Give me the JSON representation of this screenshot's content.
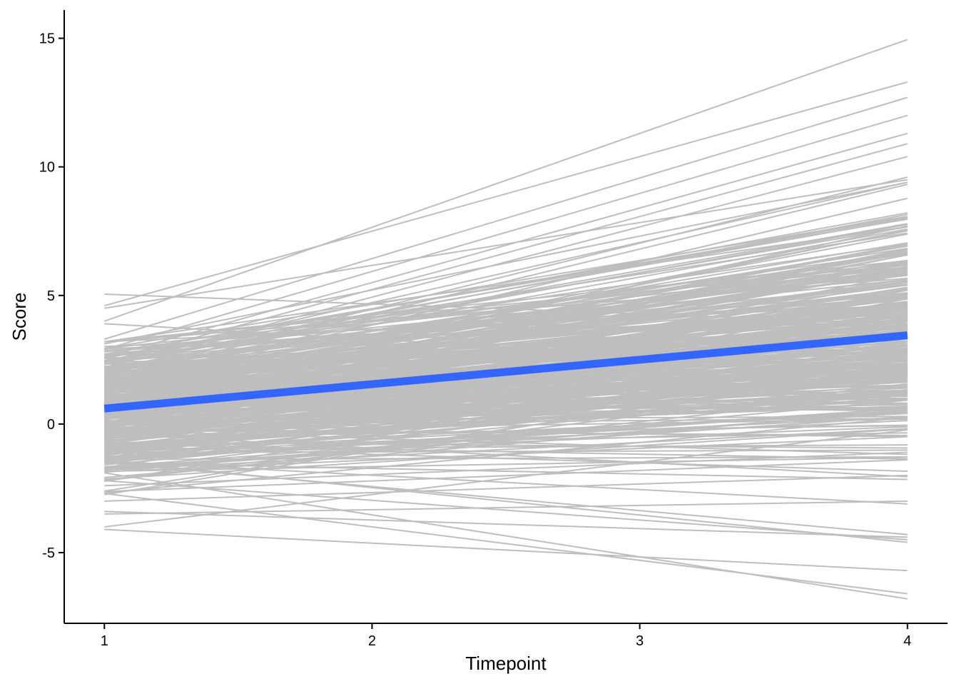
{
  "chart_data": {
    "type": "line",
    "title": "",
    "xlabel": "Timepoint",
    "ylabel": "Score",
    "x": [
      1,
      2,
      3,
      4
    ],
    "xlim": [
      0.85,
      4.15
    ],
    "ylim": [
      -7.75,
      16.1
    ],
    "x_ticks": [
      {
        "value": 1,
        "label": "1"
      },
      {
        "value": 2,
        "label": "2"
      },
      {
        "value": 3,
        "label": "3"
      },
      {
        "value": 4,
        "label": "4"
      }
    ],
    "y_ticks": [
      {
        "value": -5,
        "label": "-5"
      },
      {
        "value": 0,
        "label": "0"
      },
      {
        "value": 5,
        "label": "5"
      },
      {
        "value": 10,
        "label": "10"
      },
      {
        "value": 15,
        "label": "15"
      }
    ],
    "grid": false,
    "legend": "none",
    "individual_trajectories": {
      "count": 400,
      "color": "#bebebe",
      "description_note_excluded": true,
      "highlighted": [
        {
          "start": 5.05,
          "end": 3.9
        },
        {
          "start": 4.5,
          "end": 9.5
        },
        {
          "start": 4.6,
          "end": 13.3
        },
        {
          "start": 4.0,
          "end": 14.95
        },
        {
          "start": 3.9,
          "end": 2.1
        },
        {
          "start": 3.3,
          "end": 12.7
        },
        {
          "start": 2.9,
          "end": 12.0
        },
        {
          "start": 2.6,
          "end": 11.3
        },
        {
          "start": 2.4,
          "end": 10.9
        },
        {
          "start": 2.2,
          "end": 10.4
        },
        {
          "start": 1.9,
          "end": 9.6
        },
        {
          "start": -1.5,
          "end": -4.3
        },
        {
          "start": -2.2,
          "end": -4.5
        },
        {
          "start": -2.7,
          "end": -6.6
        },
        {
          "start": -1.9,
          "end": -6.8
        },
        {
          "start": -3.4,
          "end": -4.4
        },
        {
          "start": -3.5,
          "end": -3.0
        },
        {
          "start": -4.1,
          "end": -5.7
        },
        {
          "start": -2.4,
          "end": -1.1
        },
        {
          "start": -3.0,
          "end": -2.0
        }
      ]
    },
    "series": [
      {
        "name": "",
        "color": "#3366ff",
        "values": [
          0.6,
          1.55,
          2.5,
          3.45
        ]
      }
    ]
  }
}
